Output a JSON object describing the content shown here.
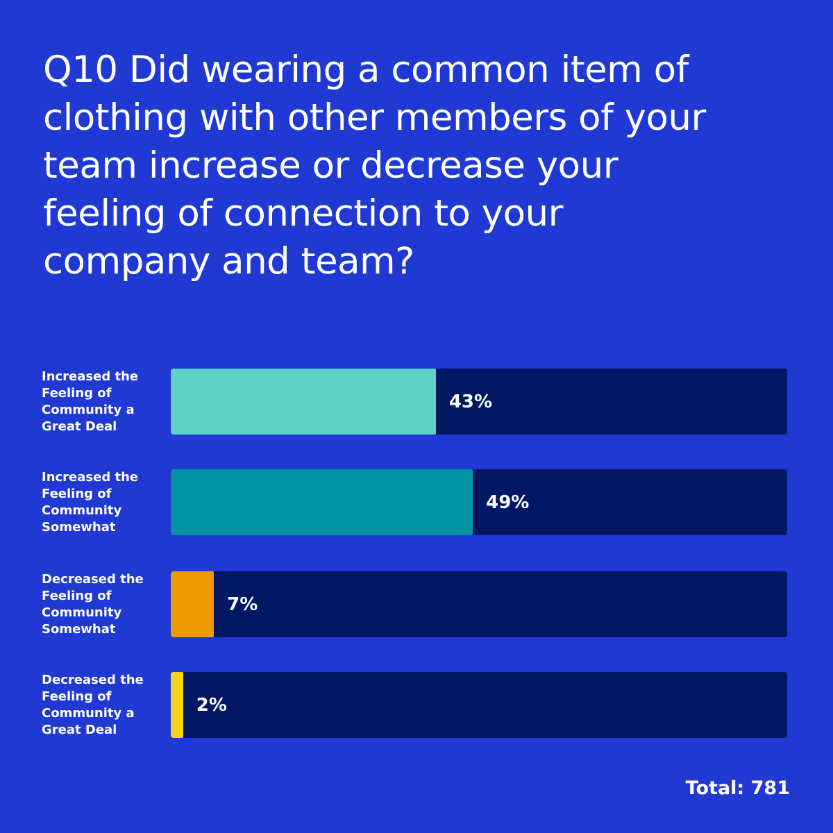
{
  "chart_data": {
    "type": "bar",
    "orientation": "horizontal",
    "title": "Q10 Did wearing a common item of clothing with other members of your team increase or decrease your feeling of connection to your company and team?",
    "categories": [
      "Increased the Feeling of Community a Great Deal",
      "Increased the Feeling of Community Somewhat",
      "Decreased the Feeling of Community Somewhat",
      "Decreased the Feeling of Community a Great Deal"
    ],
    "values": [
      43,
      49,
      7,
      2
    ],
    "value_labels": [
      "43%",
      "49%",
      "7%",
      "2%"
    ],
    "colors": [
      "#5ed1c5",
      "#0093a3",
      "#ec9a00",
      "#f7d417"
    ],
    "track_color": "#001763",
    "xlim": [
      0,
      100
    ],
    "unit": "%",
    "xlabel": "",
    "ylabel": "",
    "legend": "none",
    "grid": false
  },
  "footer": {
    "total_label": "Total: 781"
  },
  "colors": {
    "background": "#2039d3",
    "text": "#ffffff"
  }
}
